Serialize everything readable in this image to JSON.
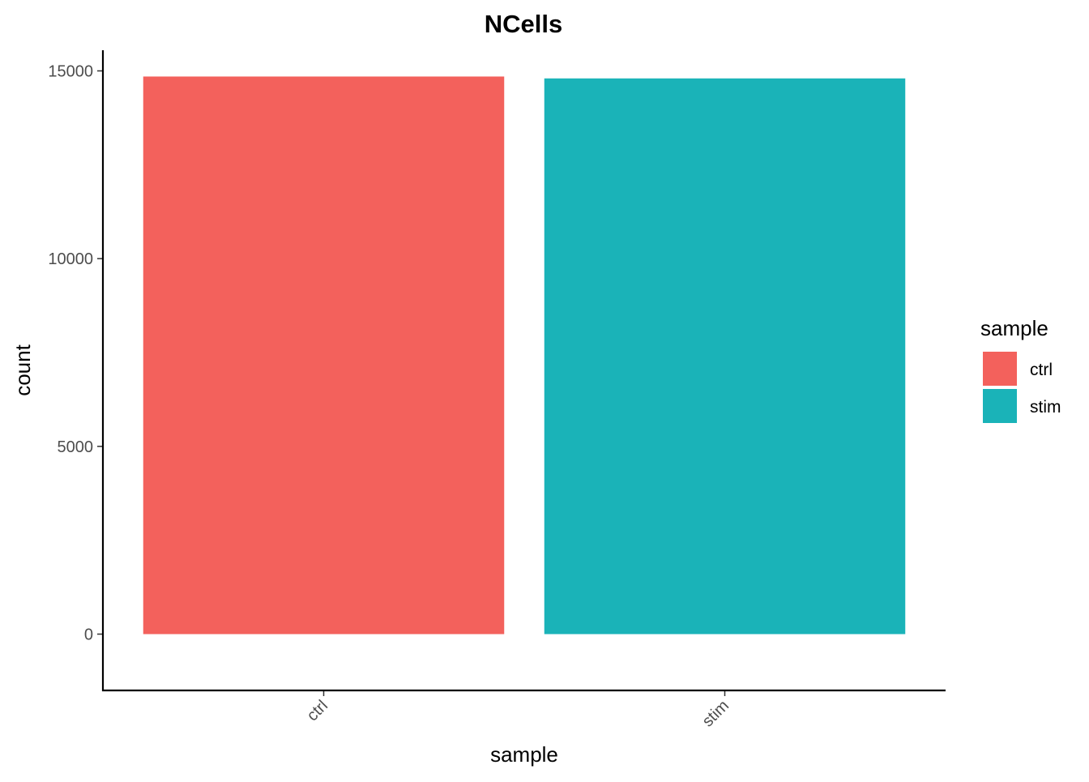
{
  "chart_data": {
    "type": "bar",
    "title": "NCells",
    "xlabel": "sample",
    "ylabel": "count",
    "categories": [
      "ctrl",
      "stim"
    ],
    "values": [
      14850,
      14800
    ],
    "colors": [
      "#F3615C",
      "#1AB3B8"
    ],
    "ylim": [
      -1500,
      15550
    ],
    "yticks": [
      0,
      5000,
      10000,
      15000
    ],
    "grid": false,
    "legend": {
      "title": "sample",
      "placement": "right",
      "entries": [
        "ctrl",
        "stim"
      ]
    }
  }
}
